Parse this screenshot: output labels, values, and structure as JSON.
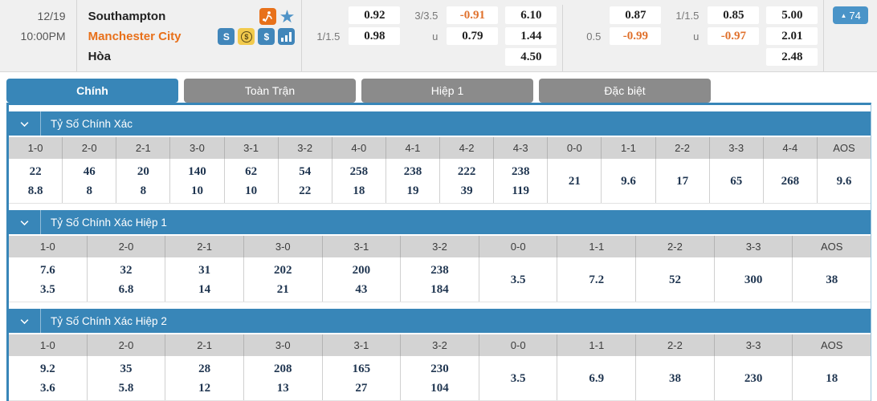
{
  "match": {
    "date": "12/19",
    "time": "10:00PM",
    "home": "Southampton",
    "away": "Manchester City",
    "draw": "Hòa",
    "live_badge": {
      "arrow": "▲",
      "count": "74"
    },
    "icons": [
      "soccer-icon",
      "star-icon",
      "stack-icon",
      "coin-dollar-icon",
      "dollar-icon",
      "bar-chart-icon"
    ]
  },
  "odds_groups": [
    {
      "hdp": {
        "labels": [
          "",
          "1/1.5",
          ""
        ],
        "odds": [
          "0.92",
          "0.98",
          ""
        ]
      },
      "ou": {
        "labels": [
          "3/3.5",
          "u",
          ""
        ],
        "odds": [
          "-0.91",
          "0.79",
          ""
        ]
      },
      "x12": [
        "6.10",
        "1.44",
        "4.50"
      ]
    },
    {
      "hdp": {
        "labels": [
          "",
          "0.5",
          ""
        ],
        "odds": [
          "0.87",
          "-0.99",
          ""
        ]
      },
      "ou": {
        "labels": [
          "1/1.5",
          "u",
          ""
        ],
        "odds": [
          "0.85",
          "-0.97",
          ""
        ]
      },
      "x12": [
        "5.00",
        "2.01",
        "2.48"
      ]
    }
  ],
  "tabs": [
    {
      "label": "Chính",
      "active": true
    },
    {
      "label": "Toàn Trận",
      "active": false
    },
    {
      "label": "Hiệp 1",
      "active": false
    },
    {
      "label": "Đặc biệt",
      "active": false
    }
  ],
  "sections": [
    {
      "title": "Tỷ Số Chính Xác",
      "columns": [
        {
          "score": "1-0",
          "values": [
            "22",
            "8.8"
          ]
        },
        {
          "score": "2-0",
          "values": [
            "46",
            "8"
          ]
        },
        {
          "score": "2-1",
          "values": [
            "20",
            "8"
          ]
        },
        {
          "score": "3-0",
          "values": [
            "140",
            "10"
          ]
        },
        {
          "score": "3-1",
          "values": [
            "62",
            "10"
          ]
        },
        {
          "score": "3-2",
          "values": [
            "54",
            "22"
          ]
        },
        {
          "score": "4-0",
          "values": [
            "258",
            "18"
          ]
        },
        {
          "score": "4-1",
          "values": [
            "238",
            "19"
          ]
        },
        {
          "score": "4-2",
          "values": [
            "222",
            "39"
          ]
        },
        {
          "score": "4-3",
          "values": [
            "238",
            "119"
          ]
        },
        {
          "score": "0-0",
          "values": [
            "21"
          ]
        },
        {
          "score": "1-1",
          "values": [
            "9.6"
          ]
        },
        {
          "score": "2-2",
          "values": [
            "17"
          ]
        },
        {
          "score": "3-3",
          "values": [
            "65"
          ]
        },
        {
          "score": "4-4",
          "values": [
            "268"
          ]
        },
        {
          "score": "AOS",
          "values": [
            "9.6"
          ]
        }
      ]
    },
    {
      "title": "Tỷ Số Chính Xác Hiệp 1",
      "columns": [
        {
          "score": "1-0",
          "values": [
            "7.6",
            "3.5"
          ]
        },
        {
          "score": "2-0",
          "values": [
            "32",
            "6.8"
          ]
        },
        {
          "score": "2-1",
          "values": [
            "31",
            "14"
          ]
        },
        {
          "score": "3-0",
          "values": [
            "202",
            "21"
          ]
        },
        {
          "score": "3-1",
          "values": [
            "200",
            "43"
          ]
        },
        {
          "score": "3-2",
          "values": [
            "238",
            "184"
          ]
        },
        {
          "score": "0-0",
          "values": [
            "3.5"
          ]
        },
        {
          "score": "1-1",
          "values": [
            "7.2"
          ]
        },
        {
          "score": "2-2",
          "values": [
            "52"
          ]
        },
        {
          "score": "3-3",
          "values": [
            "300"
          ]
        },
        {
          "score": "AOS",
          "values": [
            "38"
          ]
        }
      ]
    },
    {
      "title": "Tỷ Số Chính Xác Hiệp 2",
      "columns": [
        {
          "score": "1-0",
          "values": [
            "9.2",
            "3.6"
          ]
        },
        {
          "score": "2-0",
          "values": [
            "35",
            "5.8"
          ]
        },
        {
          "score": "2-1",
          "values": [
            "28",
            "12"
          ]
        },
        {
          "score": "3-0",
          "values": [
            "208",
            "13"
          ]
        },
        {
          "score": "3-1",
          "values": [
            "165",
            "27"
          ]
        },
        {
          "score": "3-2",
          "values": [
            "230",
            "104"
          ]
        },
        {
          "score": "0-0",
          "values": [
            "3.5"
          ]
        },
        {
          "score": "1-1",
          "values": [
            "6.9"
          ]
        },
        {
          "score": "2-2",
          "values": [
            "38"
          ]
        },
        {
          "score": "3-3",
          "values": [
            "230"
          ]
        },
        {
          "score": "AOS",
          "values": [
            "18"
          ]
        }
      ]
    }
  ],
  "colors": {
    "accent_blue": "#3886b8",
    "badge_blue": "#4a94c8",
    "team_orange": "#e8701a",
    "negative_orange": "#e0712c",
    "tab_gray": "#8b8b8b",
    "header_gray": "#d3d3d3",
    "value_navy": "#1f3550"
  }
}
